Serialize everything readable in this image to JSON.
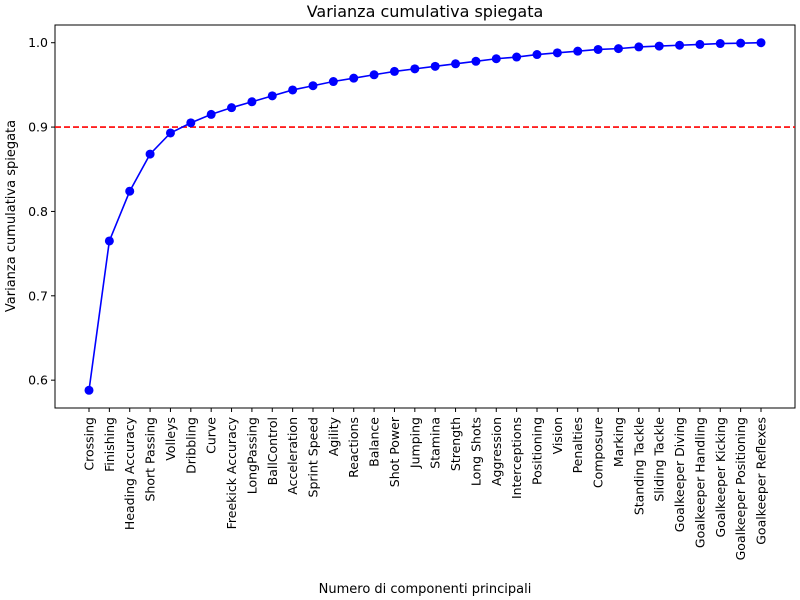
{
  "chart_data": {
    "type": "line",
    "title": "Varianza cumulativa spiegata",
    "xlabel": "Numero di componenti principali",
    "ylabel": "Varianza cumulativa spiegata",
    "categories": [
      "Crossing",
      "Finishing",
      "Heading Accuracy",
      "Short Passing",
      "Volleys",
      "Dribbling",
      "Curve",
      "Freekick Accuracy",
      "LongPassing",
      "BallControl",
      "Acceleration",
      "Sprint Speed",
      "Agility",
      "Reactions",
      "Balance",
      "Shot Power",
      "Jumping",
      "Stamina",
      "Strength",
      "Long Shots",
      "Aggression",
      "Interceptions",
      "Positioning",
      "Vision",
      "Penalties",
      "Composure",
      "Marking",
      "Standing Tackle",
      "Sliding Tackle",
      "Goalkeeper Diving",
      "Goalkeeper Handling",
      "Goalkeeper Kicking",
      "Goalkeeper Positioning",
      "Goalkeeper Reflexes"
    ],
    "series": [
      {
        "values": [
          0.588,
          0.765,
          0.824,
          0.868,
          0.893,
          0.905,
          0.915,
          0.923,
          0.93,
          0.937,
          0.944,
          0.949,
          0.954,
          0.958,
          0.962,
          0.966,
          0.969,
          0.972,
          0.975,
          0.978,
          0.981,
          0.983,
          0.986,
          0.988,
          0.99,
          0.992,
          0.993,
          0.995,
          0.996,
          0.997,
          0.998,
          0.999,
          0.9995,
          1.0
        ],
        "color": "#0000ff"
      }
    ],
    "reference_line": {
      "y": 0.9,
      "color": "#ff0000",
      "style": "dashed"
    },
    "ylim": [
      0.567,
      1.021
    ],
    "yticks": [
      0.6,
      0.7,
      0.8,
      0.9,
      1.0
    ],
    "ytick_labels": [
      "0.6",
      "0.7",
      "0.8",
      "0.9",
      "1.0"
    ],
    "grid": false,
    "legend": false
  }
}
